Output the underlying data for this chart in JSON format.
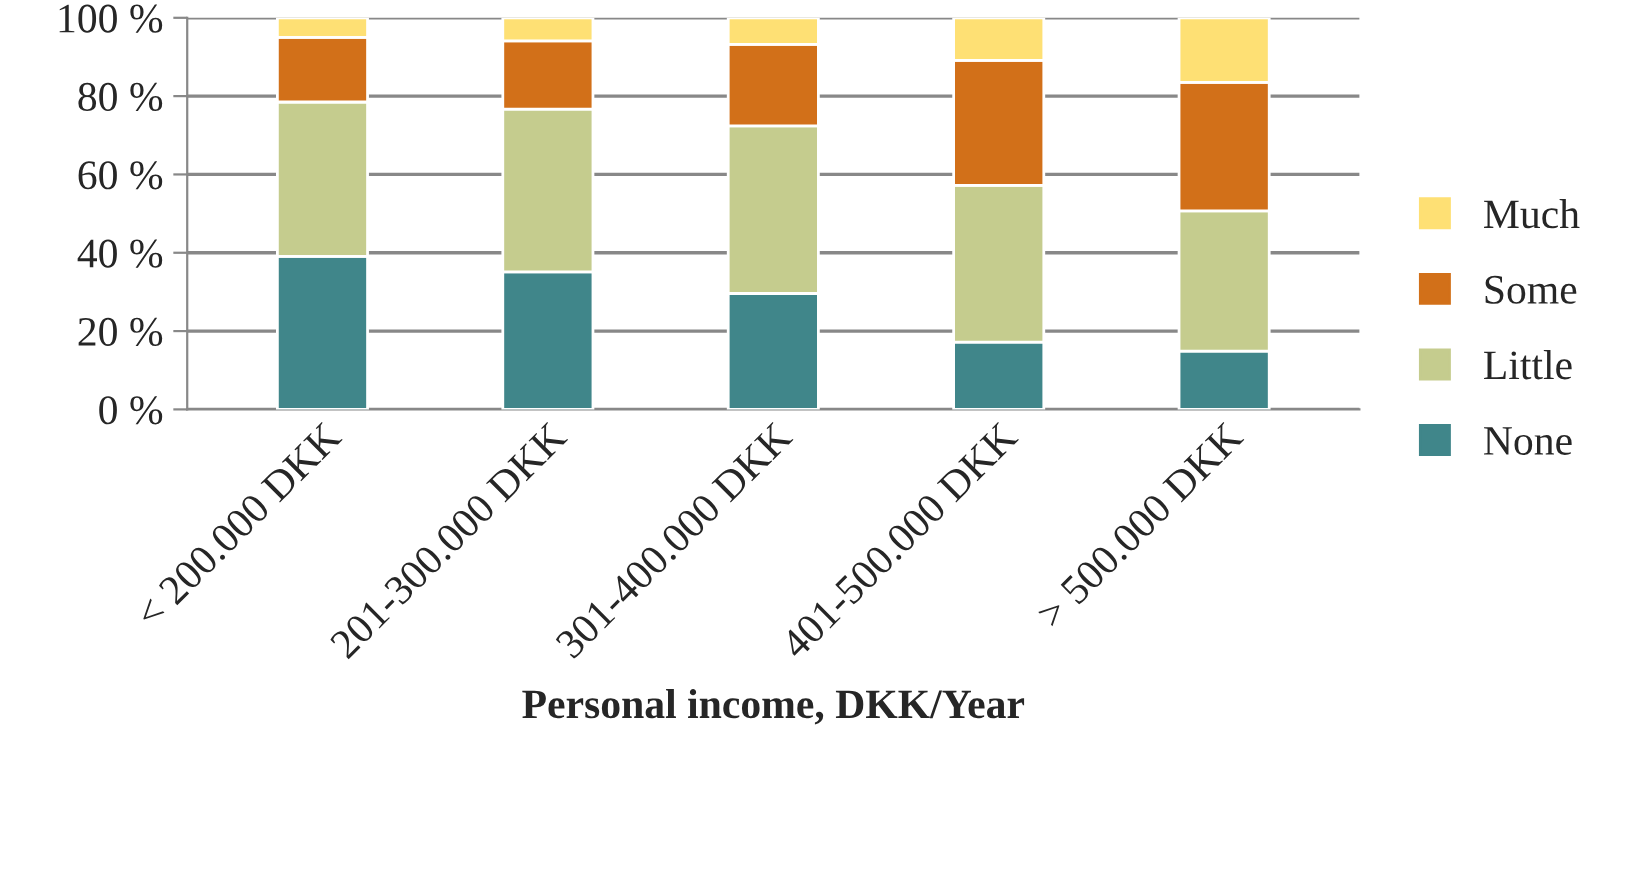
{
  "chart_data": {
    "type": "bar",
    "stacked": true,
    "xlabel": "Personal income, DKK/Year",
    "categories": [
      "< 200.000 DKK",
      "201-300.000 DKK",
      "301-400.000 DKK",
      "401-500.000 DKK",
      "> 500.000 DKK"
    ],
    "series": [
      {
        "name": "None",
        "color": "#40868a",
        "values": [
          39.1,
          35.1,
          29.6,
          17.2,
          14.9
        ]
      },
      {
        "name": "Little",
        "color": "#c5cc8e",
        "values": [
          39.4,
          41.6,
          42.8,
          40.0,
          35.8
        ]
      },
      {
        "name": "Some",
        "color": "#d27019",
        "values": [
          16.5,
          17.4,
          20.8,
          31.9,
          32.8
        ]
      },
      {
        "name": "Much",
        "color": "#fee074",
        "values": [
          5.0,
          5.9,
          6.8,
          10.9,
          16.5
        ]
      }
    ],
    "ylim": [
      0,
      100
    ],
    "yticks": [
      {
        "value": 0,
        "label": "0 %"
      },
      {
        "value": 20,
        "label": "20 %"
      },
      {
        "value": 40,
        "label": "40 %"
      },
      {
        "value": 60,
        "label": "60 %"
      },
      {
        "value": 80,
        "label": "80 %"
      },
      {
        "value": 100,
        "label": "100 %"
      }
    ],
    "grid": "y",
    "legend": "right"
  }
}
